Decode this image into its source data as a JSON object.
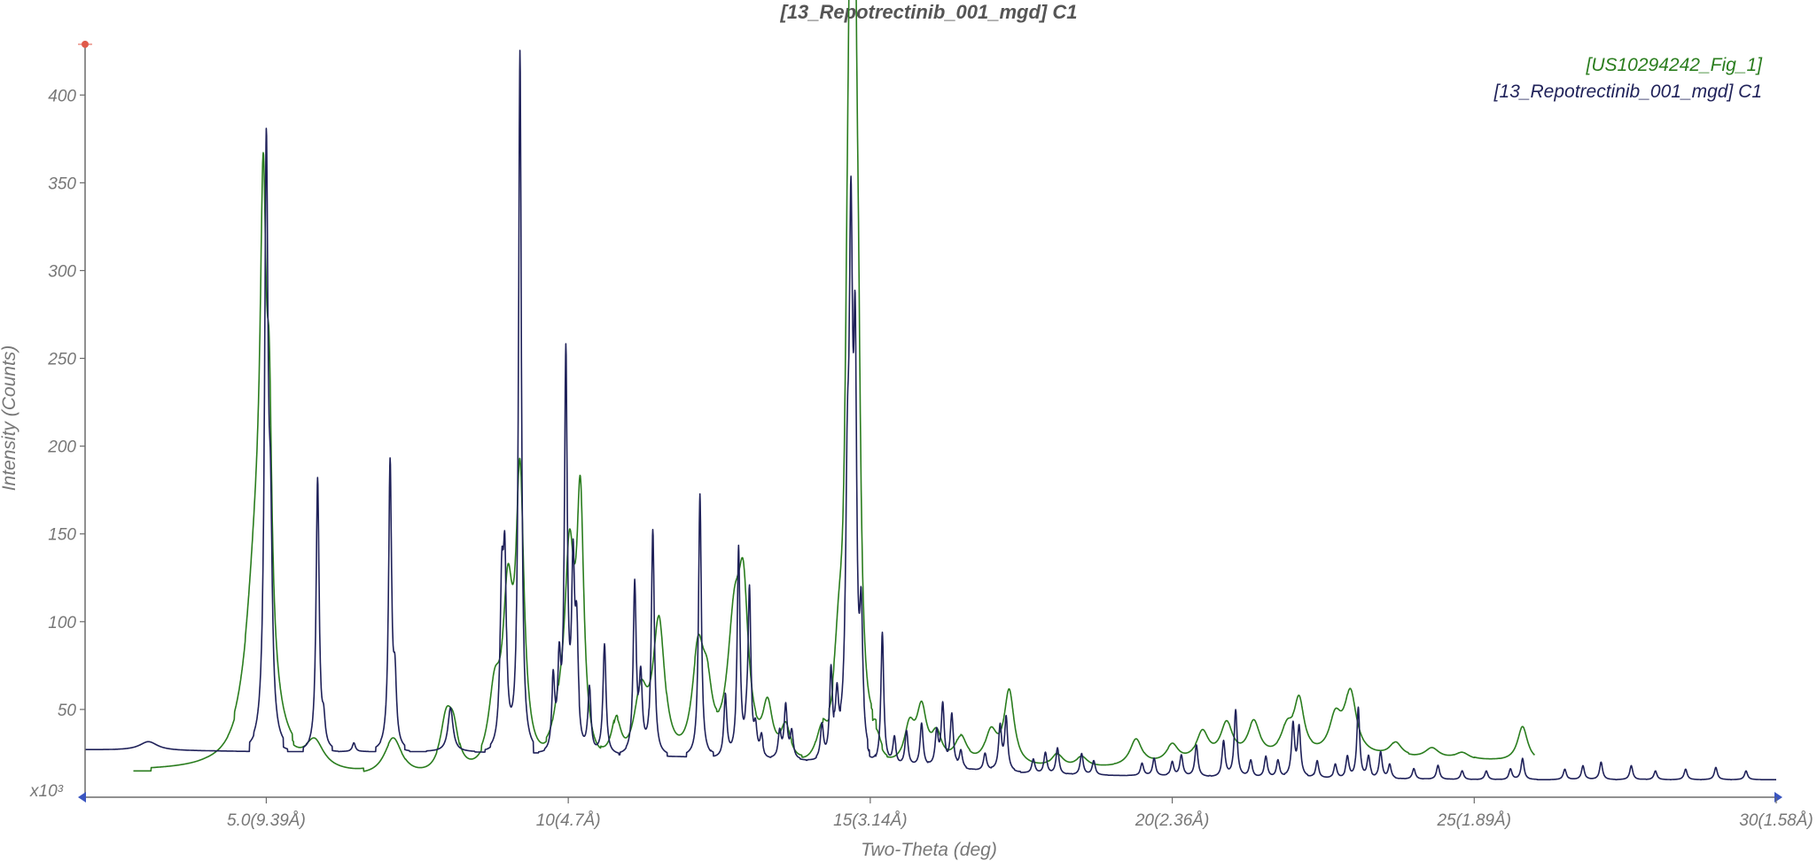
{
  "chart_data": {
    "type": "line",
    "title": "[13_Repotrectinib_001_mgd] C1",
    "xlabel": "Two-Theta (deg)",
    "ylabel": "Intensity (Counts)",
    "y_multiplier_label": "x10³",
    "xlim": [
      2.0,
      30.0
    ],
    "ylim": [
      0,
      440
    ],
    "grid": false,
    "legend_position": "top-right",
    "x_ticks": [
      {
        "value": 5.0,
        "label": "5.0(9.39Å)"
      },
      {
        "value": 10.0,
        "label": "10(4.7Å)"
      },
      {
        "value": 15.0,
        "label": "15(3.14Å)"
      },
      {
        "value": 20.0,
        "label": "20(2.36Å)"
      },
      {
        "value": 25.0,
        "label": "25(1.89Å)"
      },
      {
        "value": 30.0,
        "label": "30(1.58Å)"
      }
    ],
    "y_ticks": [
      {
        "value": 50,
        "label": "50"
      },
      {
        "value": 100,
        "label": "100"
      },
      {
        "value": 150,
        "label": "150"
      },
      {
        "value": 200,
        "label": "200"
      },
      {
        "value": 250,
        "label": "250"
      },
      {
        "value": 300,
        "label": "300"
      },
      {
        "value": 350,
        "label": "350"
      },
      {
        "value": 400,
        "label": "400"
      }
    ],
    "series": [
      {
        "name": "[US10294242_Fig_1]",
        "color": "#2a7d1e",
        "x_range": [
          2.8,
          26.0
        ],
        "baseline": [
          [
            2.8,
            15
          ],
          [
            4.0,
            15
          ],
          [
            5.0,
            13
          ],
          [
            6.0,
            12
          ],
          [
            7.0,
            11
          ],
          [
            8.0,
            11
          ],
          [
            9.0,
            11
          ],
          [
            10.0,
            12
          ],
          [
            11.0,
            13
          ],
          [
            12.0,
            14
          ],
          [
            13.0,
            15
          ],
          [
            14.0,
            16
          ],
          [
            15.0,
            17
          ],
          [
            16.0,
            18
          ],
          [
            17.0,
            17
          ],
          [
            18.0,
            16
          ],
          [
            19.0,
            17
          ],
          [
            20.0,
            19
          ],
          [
            21.0,
            21
          ],
          [
            22.0,
            22
          ],
          [
            23.0,
            23
          ],
          [
            24.0,
            22
          ],
          [
            25.0,
            21
          ],
          [
            26.0,
            20
          ]
        ],
        "peaks": [
          {
            "x": 4.85,
            "h": 120,
            "w": 0.22
          },
          {
            "x": 4.95,
            "h": 230,
            "w": 0.06
          },
          {
            "x": 5.05,
            "h": 120,
            "w": 0.05
          },
          {
            "x": 5.8,
            "h": 15,
            "w": 0.18
          },
          {
            "x": 7.1,
            "h": 22,
            "w": 0.18
          },
          {
            "x": 7.98,
            "h": 30,
            "w": 0.12
          },
          {
            "x": 8.1,
            "h": 20,
            "w": 0.1
          },
          {
            "x": 8.78,
            "h": 40,
            "w": 0.12
          },
          {
            "x": 9.0,
            "h": 90,
            "w": 0.1
          },
          {
            "x": 9.2,
            "h": 160,
            "w": 0.08
          },
          {
            "x": 9.85,
            "h": 20,
            "w": 0.12
          },
          {
            "x": 10.02,
            "h": 115,
            "w": 0.1
          },
          {
            "x": 10.2,
            "h": 140,
            "w": 0.07
          },
          {
            "x": 10.8,
            "h": 25,
            "w": 0.1
          },
          {
            "x": 11.2,
            "h": 40,
            "w": 0.14
          },
          {
            "x": 11.5,
            "h": 80,
            "w": 0.12
          },
          {
            "x": 12.15,
            "h": 60,
            "w": 0.12
          },
          {
            "x": 12.3,
            "h": 30,
            "w": 0.1
          },
          {
            "x": 12.75,
            "h": 75,
            "w": 0.14
          },
          {
            "x": 12.9,
            "h": 80,
            "w": 0.1
          },
          {
            "x": 13.3,
            "h": 30,
            "w": 0.1
          },
          {
            "x": 13.6,
            "h": 20,
            "w": 0.1
          },
          {
            "x": 14.2,
            "h": 20,
            "w": 0.12
          },
          {
            "x": 14.48,
            "h": 50,
            "w": 0.1
          },
          {
            "x": 14.62,
            "h": 140,
            "w": 0.05
          },
          {
            "x": 14.68,
            "h": 380,
            "w": 0.045
          },
          {
            "x": 14.74,
            "h": 320,
            "w": 0.045
          },
          {
            "x": 14.8,
            "h": 150,
            "w": 0.05
          },
          {
            "x": 15.1,
            "h": 15,
            "w": 0.1
          },
          {
            "x": 15.65,
            "h": 20,
            "w": 0.1
          },
          {
            "x": 15.85,
            "h": 30,
            "w": 0.1
          },
          {
            "x": 16.1,
            "h": 15,
            "w": 0.1
          },
          {
            "x": 16.5,
            "h": 15,
            "w": 0.12
          },
          {
            "x": 17.0,
            "h": 18,
            "w": 0.12
          },
          {
            "x": 17.3,
            "h": 42,
            "w": 0.1
          },
          {
            "x": 18.1,
            "h": 8,
            "w": 0.12
          },
          {
            "x": 18.5,
            "h": 6,
            "w": 0.12
          },
          {
            "x": 19.4,
            "h": 15,
            "w": 0.12
          },
          {
            "x": 20.0,
            "h": 10,
            "w": 0.12
          },
          {
            "x": 20.5,
            "h": 16,
            "w": 0.12
          },
          {
            "x": 20.9,
            "h": 20,
            "w": 0.12
          },
          {
            "x": 21.35,
            "h": 20,
            "w": 0.12
          },
          {
            "x": 21.9,
            "h": 15,
            "w": 0.12
          },
          {
            "x": 22.1,
            "h": 30,
            "w": 0.1
          },
          {
            "x": 22.7,
            "h": 20,
            "w": 0.12
          },
          {
            "x": 22.95,
            "h": 35,
            "w": 0.12
          },
          {
            "x": 23.7,
            "h": 8,
            "w": 0.12
          },
          {
            "x": 24.3,
            "h": 6,
            "w": 0.14
          },
          {
            "x": 24.8,
            "h": 4,
            "w": 0.14
          },
          {
            "x": 25.8,
            "h": 20,
            "w": 0.1
          }
        ]
      },
      {
        "name": "[13_Repotrectinib_001_mgd] C1",
        "color": "#1f2159",
        "x_range": [
          2.0,
          30.0
        ],
        "baseline": [
          [
            2.0,
            27
          ],
          [
            5.0,
            26
          ],
          [
            8.0,
            26
          ],
          [
            10.0,
            25
          ],
          [
            12.0,
            23
          ],
          [
            14.0,
            21
          ],
          [
            15.0,
            19
          ],
          [
            16.0,
            17
          ],
          [
            17.0,
            15
          ],
          [
            18.0,
            13
          ],
          [
            20.0,
            12
          ],
          [
            22.0,
            11
          ],
          [
            25.0,
            10
          ],
          [
            28.0,
            10
          ],
          [
            30.0,
            10
          ]
        ],
        "peaks": [
          {
            "x": 3.05,
            "h": 5,
            "w": 0.18
          },
          {
            "x": 5.0,
            "h": 335,
            "w": 0.035
          },
          {
            "x": 5.07,
            "h": 100,
            "w": 0.035
          },
          {
            "x": 5.85,
            "h": 155,
            "w": 0.03
          },
          {
            "x": 5.95,
            "h": 14,
            "w": 0.03
          },
          {
            "x": 6.45,
            "h": 5,
            "w": 0.03
          },
          {
            "x": 7.05,
            "h": 163,
            "w": 0.03
          },
          {
            "x": 7.13,
            "h": 35,
            "w": 0.03
          },
          {
            "x": 8.05,
            "h": 25,
            "w": 0.05
          },
          {
            "x": 8.9,
            "h": 90,
            "w": 0.035
          },
          {
            "x": 8.95,
            "h": 95,
            "w": 0.03
          },
          {
            "x": 9.2,
            "h": 400,
            "w": 0.028
          },
          {
            "x": 9.75,
            "h": 40,
            "w": 0.03
          },
          {
            "x": 9.85,
            "h": 45,
            "w": 0.03
          },
          {
            "x": 9.96,
            "h": 222,
            "w": 0.028
          },
          {
            "x": 10.08,
            "h": 98,
            "w": 0.03
          },
          {
            "x": 10.14,
            "h": 60,
            "w": 0.03
          },
          {
            "x": 10.35,
            "h": 38,
            "w": 0.03
          },
          {
            "x": 10.6,
            "h": 63,
            "w": 0.03
          },
          {
            "x": 11.1,
            "h": 97,
            "w": 0.03
          },
          {
            "x": 11.2,
            "h": 40,
            "w": 0.03
          },
          {
            "x": 11.4,
            "h": 128,
            "w": 0.03
          },
          {
            "x": 12.18,
            "h": 150,
            "w": 0.028
          },
          {
            "x": 12.6,
            "h": 35,
            "w": 0.03
          },
          {
            "x": 12.82,
            "h": 118,
            "w": 0.028
          },
          {
            "x": 12.95,
            "h": 10,
            "w": 0.03
          },
          {
            "x": 13.0,
            "h": 92,
            "w": 0.028
          },
          {
            "x": 13.1,
            "h": 15,
            "w": 0.03
          },
          {
            "x": 13.2,
            "h": 12,
            "w": 0.03
          },
          {
            "x": 13.5,
            "h": 15,
            "w": 0.03
          },
          {
            "x": 13.6,
            "h": 30,
            "w": 0.03
          },
          {
            "x": 13.7,
            "h": 15,
            "w": 0.03
          },
          {
            "x": 14.2,
            "h": 20,
            "w": 0.03
          },
          {
            "x": 14.35,
            "h": 50,
            "w": 0.03
          },
          {
            "x": 14.45,
            "h": 30,
            "w": 0.03
          },
          {
            "x": 14.62,
            "h": 120,
            "w": 0.035
          },
          {
            "x": 14.68,
            "h": 270,
            "w": 0.035
          },
          {
            "x": 14.75,
            "h": 200,
            "w": 0.03
          },
          {
            "x": 14.85,
            "h": 70,
            "w": 0.03
          },
          {
            "x": 15.2,
            "h": 75,
            "w": 0.028
          },
          {
            "x": 15.4,
            "h": 15,
            "w": 0.03
          },
          {
            "x": 15.6,
            "h": 20,
            "w": 0.03
          },
          {
            "x": 15.85,
            "h": 25,
            "w": 0.03
          },
          {
            "x": 16.1,
            "h": 20,
            "w": 0.03
          },
          {
            "x": 16.2,
            "h": 35,
            "w": 0.03
          },
          {
            "x": 16.35,
            "h": 30,
            "w": 0.03
          },
          {
            "x": 16.5,
            "h": 10,
            "w": 0.03
          },
          {
            "x": 16.9,
            "h": 10,
            "w": 0.03
          },
          {
            "x": 17.15,
            "h": 25,
            "w": 0.03
          },
          {
            "x": 17.25,
            "h": 30,
            "w": 0.03
          },
          {
            "x": 17.7,
            "h": 8,
            "w": 0.03
          },
          {
            "x": 17.9,
            "h": 12,
            "w": 0.03
          },
          {
            "x": 18.1,
            "h": 15,
            "w": 0.03
          },
          {
            "x": 18.5,
            "h": 12,
            "w": 0.03
          },
          {
            "x": 18.7,
            "h": 8,
            "w": 0.03
          },
          {
            "x": 19.5,
            "h": 7,
            "w": 0.03
          },
          {
            "x": 19.7,
            "h": 10,
            "w": 0.03
          },
          {
            "x": 20.0,
            "h": 8,
            "w": 0.03
          },
          {
            "x": 20.15,
            "h": 12,
            "w": 0.03
          },
          {
            "x": 20.4,
            "h": 18,
            "w": 0.03
          },
          {
            "x": 20.85,
            "h": 20,
            "w": 0.03
          },
          {
            "x": 21.05,
            "h": 38,
            "w": 0.03
          },
          {
            "x": 21.3,
            "h": 10,
            "w": 0.03
          },
          {
            "x": 21.55,
            "h": 12,
            "w": 0.03
          },
          {
            "x": 21.75,
            "h": 10,
            "w": 0.03
          },
          {
            "x": 22.0,
            "h": 30,
            "w": 0.03
          },
          {
            "x": 22.1,
            "h": 28,
            "w": 0.03
          },
          {
            "x": 22.4,
            "h": 10,
            "w": 0.03
          },
          {
            "x": 22.7,
            "h": 8,
            "w": 0.03
          },
          {
            "x": 22.9,
            "h": 12,
            "w": 0.03
          },
          {
            "x": 23.08,
            "h": 40,
            "w": 0.028
          },
          {
            "x": 23.25,
            "h": 12,
            "w": 0.03
          },
          {
            "x": 23.45,
            "h": 15,
            "w": 0.03
          },
          {
            "x": 23.6,
            "h": 8,
            "w": 0.03
          },
          {
            "x": 24.0,
            "h": 6,
            "w": 0.03
          },
          {
            "x": 24.4,
            "h": 8,
            "w": 0.03
          },
          {
            "x": 24.8,
            "h": 5,
            "w": 0.03
          },
          {
            "x": 25.2,
            "h": 5,
            "w": 0.03
          },
          {
            "x": 25.6,
            "h": 6,
            "w": 0.03
          },
          {
            "x": 25.8,
            "h": 12,
            "w": 0.03
          },
          {
            "x": 26.5,
            "h": 6,
            "w": 0.03
          },
          {
            "x": 26.8,
            "h": 8,
            "w": 0.03
          },
          {
            "x": 27.1,
            "h": 10,
            "w": 0.03
          },
          {
            "x": 27.6,
            "h": 8,
            "w": 0.03
          },
          {
            "x": 28.0,
            "h": 5,
            "w": 0.03
          },
          {
            "x": 28.5,
            "h": 6,
            "w": 0.03
          },
          {
            "x": 29.0,
            "h": 7,
            "w": 0.03
          },
          {
            "x": 29.5,
            "h": 5,
            "w": 0.03
          }
        ]
      }
    ]
  },
  "colors": {
    "axis": "#6b6b6b",
    "axis_arrow": "#3a55c0",
    "origin_marker": "#e05a4a",
    "text": "#777777"
  }
}
